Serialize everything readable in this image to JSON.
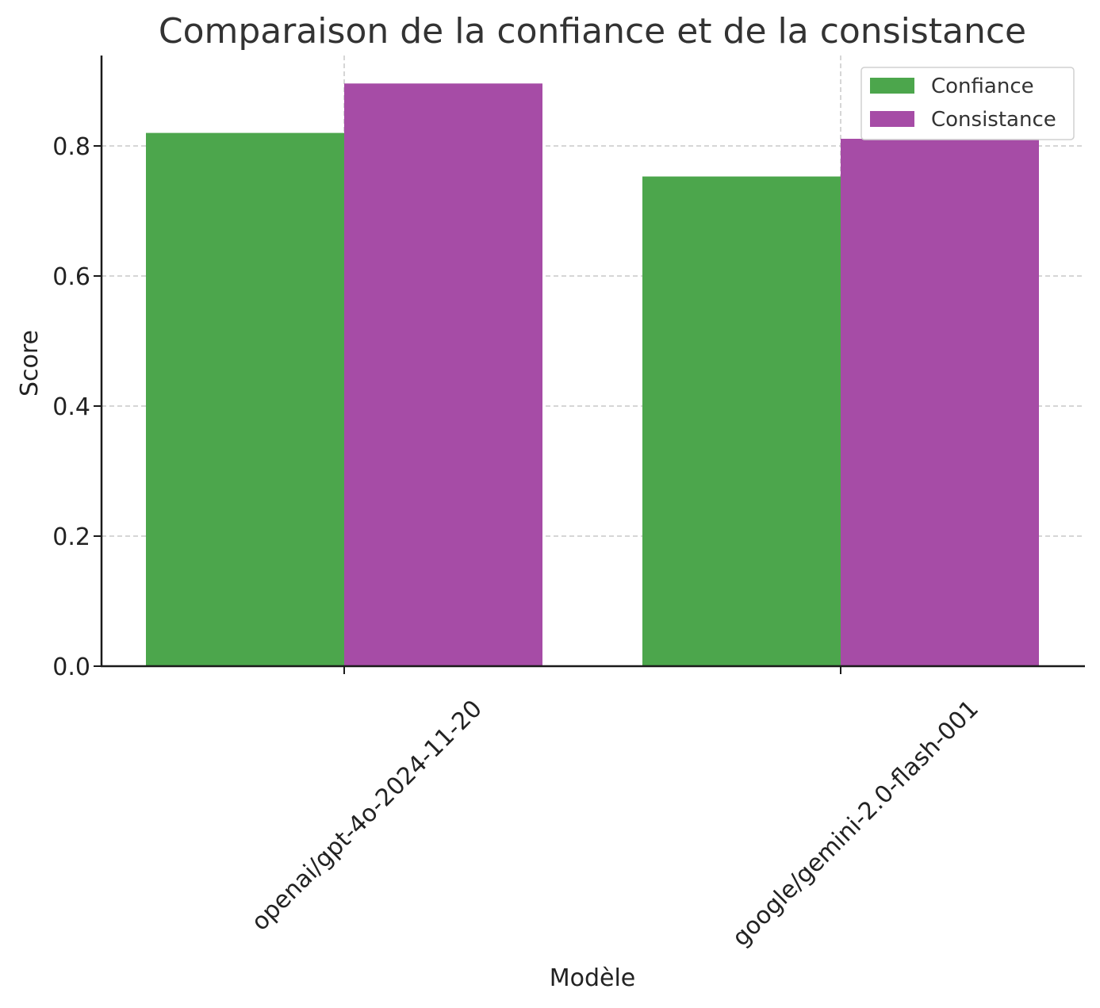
{
  "chart_data": {
    "type": "bar",
    "title": "Comparaison de la confiance et de la consistance",
    "xlabel": "Modèle",
    "ylabel": "Score",
    "categories": [
      "openai/gpt-4o-2024-11-20",
      "google/gemini-2.0-flash-001"
    ],
    "series": [
      {
        "name": "Confiance",
        "values": [
          0.82,
          0.753
        ],
        "color": "#4ca64c"
      },
      {
        "name": "Consistance",
        "values": [
          0.896,
          0.811
        ],
        "color": "#a64ca6"
      }
    ],
    "yticks": [
      "0.0",
      "0.2",
      "0.4",
      "0.6",
      "0.8"
    ],
    "ylim": [
      0,
      0.94
    ],
    "grid": true,
    "legend_position": "top-right"
  }
}
